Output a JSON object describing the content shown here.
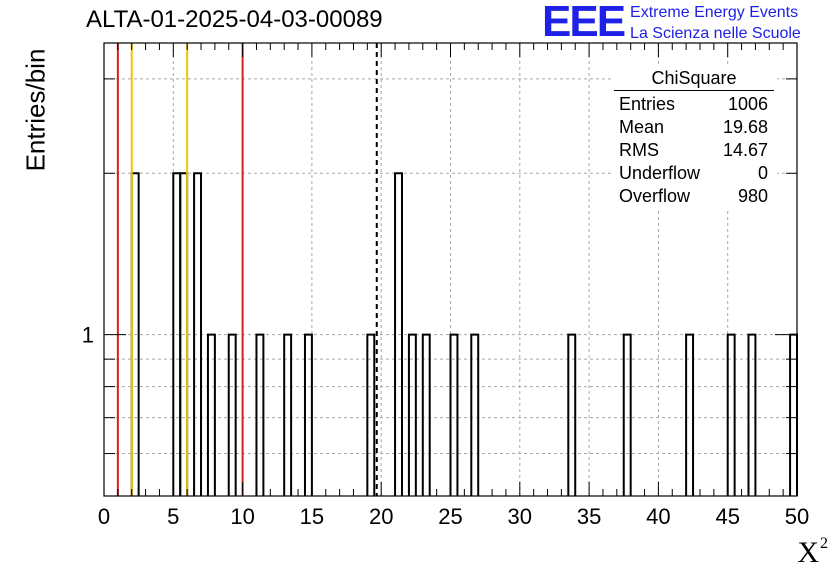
{
  "header": {
    "title": "ALTA-01-2025-04-03-00089"
  },
  "logo": {
    "mark": "EEE",
    "line1": "Extreme Energy Events",
    "line2": "La Scienza nelle Scuole"
  },
  "stats_box": {
    "title": "ChiSquare",
    "rows": [
      {
        "label": "Entries",
        "value": "1006"
      },
      {
        "label": "Mean",
        "value": "19.68"
      },
      {
        "label": "RMS",
        "value": "14.67"
      },
      {
        "label": "Underflow",
        "value": "0"
      },
      {
        "label": "Overflow",
        "value": "980"
      }
    ]
  },
  "chart_data": {
    "type": "bar",
    "style": "step-histogram",
    "title": "ALTA-01-2025-04-03-00089",
    "xlabel": "X",
    "xlabel_superscript": "2",
    "ylabel": "Entries/bin",
    "xlim": [
      0,
      50
    ],
    "ylim": [
      0.5,
      3.5
    ],
    "log_y": true,
    "grid": true,
    "bin_width": 0.5,
    "x_ticks": [
      0,
      5,
      10,
      15,
      20,
      25,
      30,
      35,
      40,
      45,
      50
    ],
    "y_tick_labels": [
      1
    ],
    "bins": [
      {
        "x": 2.0,
        "count": 2
      },
      {
        "x": 5.0,
        "count": 2
      },
      {
        "x": 5.5,
        "count": 2
      },
      {
        "x": 6.5,
        "count": 2
      },
      {
        "x": 7.5,
        "count": 1
      },
      {
        "x": 9.0,
        "count": 1
      },
      {
        "x": 11.0,
        "count": 1
      },
      {
        "x": 13.0,
        "count": 1
      },
      {
        "x": 14.5,
        "count": 1
      },
      {
        "x": 19.0,
        "count": 1
      },
      {
        "x": 21.0,
        "count": 2
      },
      {
        "x": 22.0,
        "count": 1
      },
      {
        "x": 23.0,
        "count": 1
      },
      {
        "x": 25.0,
        "count": 1
      },
      {
        "x": 26.5,
        "count": 1
      },
      {
        "x": 33.5,
        "count": 1
      },
      {
        "x": 37.5,
        "count": 1
      },
      {
        "x": 42.0,
        "count": 1
      },
      {
        "x": 45.0,
        "count": 1
      },
      {
        "x": 46.5,
        "count": 1
      },
      {
        "x": 49.5,
        "count": 1
      }
    ],
    "vertical_lines": [
      {
        "x": 1.0,
        "color": "#d62020",
        "style": "solid"
      },
      {
        "x": 2.0,
        "color": "#f2c200",
        "style": "solid"
      },
      {
        "x": 6.0,
        "color": "#f2c200",
        "style": "solid"
      },
      {
        "x": 10.0,
        "color": "#d62020",
        "style": "solid"
      },
      {
        "x": 19.68,
        "color": "#000000",
        "style": "dashed"
      }
    ]
  }
}
